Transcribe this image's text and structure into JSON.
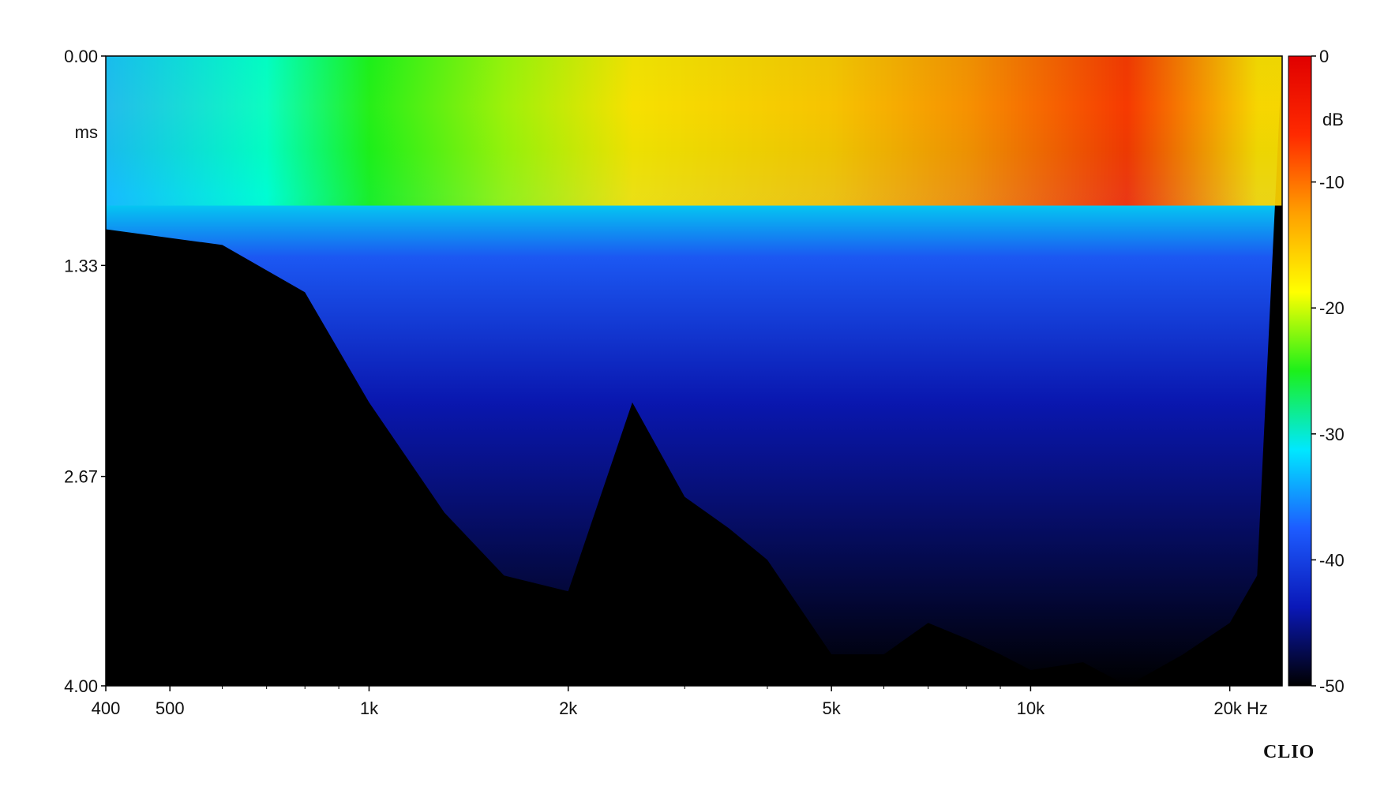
{
  "chart_data": {
    "type": "heatmap",
    "title": "",
    "xlabel": "",
    "ylabel": "ms",
    "x_unit": "Hz",
    "x_scale": "log",
    "xlim": [
      400,
      24000
    ],
    "x_ticks": [
      {
        "value": 400,
        "label": "400"
      },
      {
        "value": 500,
        "label": "500"
      },
      {
        "value": 1000,
        "label": "1k"
      },
      {
        "value": 2000,
        "label": "2k"
      },
      {
        "value": 5000,
        "label": "5k"
      },
      {
        "value": 10000,
        "label": "10k"
      },
      {
        "value": 20000,
        "label": "20k Hz"
      }
    ],
    "x_minor_ticks": [
      600,
      700,
      800,
      900,
      3000,
      4000,
      6000,
      7000,
      8000,
      9000
    ],
    "ylim": [
      0,
      4.0
    ],
    "y_ticks": [
      {
        "value": 0.0,
        "label": "0.00"
      },
      {
        "value": 1.33,
        "label": "1.33"
      },
      {
        "value": 2.67,
        "label": "2.67"
      },
      {
        "value": 4.0,
        "label": "4.00"
      }
    ],
    "colorbar": {
      "unit": "dB",
      "range": [
        -50,
        0
      ],
      "ticks": [
        0,
        -10,
        -20,
        -30,
        -40,
        -50
      ],
      "colors": [
        "#000000",
        "#0a18b8",
        "#1d5cff",
        "#00e8ff",
        "#1cf01a",
        "#ffff00",
        "#ffa000",
        "#ff2a00",
        "#e00000"
      ]
    },
    "envelope": {
      "description_values_note": "decay time (ms) at which level falls below -50 dB per frequency",
      "freq": [
        400,
        600,
        800,
        1000,
        1300,
        1600,
        2000,
        2500,
        3000,
        3500,
        4000,
        5000,
        6000,
        7000,
        8000,
        9000,
        10000,
        12000,
        14000,
        17000,
        20000,
        22000
      ],
      "decay_ms": [
        1.1,
        1.2,
        1.5,
        2.2,
        2.9,
        3.3,
        3.4,
        2.2,
        2.8,
        3.0,
        3.2,
        3.8,
        3.8,
        3.6,
        3.7,
        3.8,
        3.9,
        3.85,
        4.0,
        3.8,
        3.6,
        3.3
      ]
    },
    "grid": false,
    "legend": "none"
  },
  "brand": "CLIO"
}
